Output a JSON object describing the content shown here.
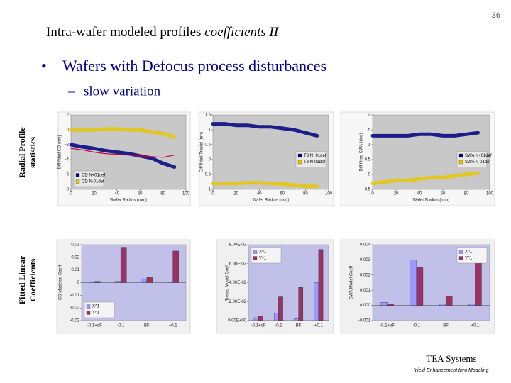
{
  "slide": {
    "page_number": "36",
    "title_plain": "Intra-wafer modeled profiles",
    "title_italic": "coefficients II",
    "bullet": "Wafers with Defocus process disturbances",
    "sub_bullet": "slow variation",
    "row_labels": [
      [
        "Radial Profile",
        "statistics"
      ],
      [
        "Fitted Linear",
        "Coefficients"
      ]
    ],
    "footer_title": "TEA Systems",
    "footer_subtitle": "Yield Enhancement thru Modeling"
  },
  "chart_data": [
    {
      "type": "line",
      "xlabel": "Wafer Radius (mm)",
      "ylabel": "Diff fitted CD (nm)",
      "x": [
        0,
        10,
        20,
        30,
        40,
        50,
        60,
        70,
        80,
        90
      ],
      "xlim": [
        0,
        100
      ],
      "xticks": [
        0,
        20,
        40,
        60,
        80,
        100
      ],
      "ylim": [
        -8,
        2
      ],
      "yticks": [
        -8,
        -6,
        -4,
        -2,
        0,
        2
      ],
      "legend": "lower left",
      "series": [
        {
          "name": "CD N+01def",
          "color": "#000080",
          "values": [
            -2,
            -2.3,
            -2.5,
            -2.8,
            -3,
            -3.2,
            -3.5,
            -3.8,
            -4.5,
            -5
          ]
        },
        {
          "name": "CD N-01def",
          "color": "#e6c800",
          "values": [
            0,
            0,
            0,
            0.1,
            0.1,
            0,
            0,
            -0.3,
            -0.5,
            -1
          ]
        },
        {
          "color": "#cc0033",
          "values": [
            -2.5,
            -2.7,
            -3,
            -3.2,
            -3.3,
            -3.4,
            -3.5,
            -3.6,
            -3.7,
            -3.4
          ]
        }
      ]
    },
    {
      "type": "line",
      "xlabel": "Wafer Radius (mm)",
      "ylabel": "Diff fitted Tresist (nm)",
      "x": [
        0,
        10,
        20,
        30,
        40,
        50,
        60,
        70,
        80,
        90
      ],
      "xlim": [
        0,
        100
      ],
      "xticks": [
        0,
        20,
        40,
        60,
        80,
        100
      ],
      "ylim": [
        -1,
        1.5
      ],
      "yticks": [
        -1,
        -0.5,
        0,
        0.5,
        1,
        1.5
      ],
      "legend": "center right",
      "series": [
        {
          "name": "T3 N+01def",
          "color": "#000080",
          "values": [
            1.2,
            1.2,
            1.15,
            1.15,
            1.1,
            1.1,
            1.05,
            1,
            0.9,
            0.8
          ]
        },
        {
          "name": "T3 N-01def",
          "color": "#e6c800",
          "values": [
            -0.8,
            -0.8,
            -0.8,
            -0.78,
            -0.78,
            -0.8,
            -0.82,
            -0.85,
            -0.9,
            -0.9
          ]
        }
      ]
    },
    {
      "type": "line",
      "xlabel": "Wafer Radius (mm)",
      "ylabel": "Diff fitted SWA (deg)",
      "x": [
        0,
        10,
        20,
        30,
        40,
        50,
        60,
        70,
        80,
        90
      ],
      "xlim": [
        0,
        100
      ],
      "xticks": [
        0,
        20,
        40,
        60,
        80,
        100
      ],
      "ylim": [
        -0.5,
        2
      ],
      "yticks": [
        -0.5,
        0,
        0.5,
        1,
        1.5,
        2
      ],
      "legend": "center right",
      "series": [
        {
          "name": "SWA N+01def",
          "color": "#000080",
          "values": [
            1.3,
            1.3,
            1.3,
            1.3,
            1.35,
            1.35,
            1.3,
            1.3,
            1.35,
            1.4
          ]
        },
        {
          "name": "SWA N-01def",
          "color": "#e6c800",
          "values": [
            -0.3,
            -0.25,
            -0.2,
            -0.2,
            -0.15,
            -0.1,
            -0.1,
            -0.05,
            0,
            0.05
          ]
        }
      ]
    },
    {
      "type": "bar",
      "ylabel": "CD Modeled Coeff",
      "categories": [
        "-0.1+oF",
        "-0.1",
        "BF",
        "+0.1"
      ],
      "ylim": [
        -0.03,
        0.03
      ],
      "yticks": [
        -0.03,
        -0.02,
        -0.01,
        0,
        0.01,
        0.02,
        0.03
      ],
      "legend": "lower left",
      "series": [
        {
          "name": "X^1",
          "color": "#9999ff",
          "values": [
            0.0005,
            0.001,
            0.003,
            0.0005
          ]
        },
        {
          "name": "Y^1",
          "color": "#993366",
          "values": [
            0.001,
            0.028,
            0.004,
            0.025
          ]
        }
      ]
    },
    {
      "type": "bar",
      "ylabel": "Tresist Model Coeff",
      "categories": [
        "-0.1+oF",
        "-0.1",
        "BF",
        "+0.1"
      ],
      "ylim": [
        0,
        0.08
      ],
      "yticks": [
        {
          "value": 0,
          "label": "0.00E+00"
        },
        {
          "value": 0.02,
          "label": "2.00E-02"
        },
        {
          "value": 0.04,
          "label": "4.00E-02"
        },
        {
          "value": 0.06,
          "label": "6.00E-02"
        },
        {
          "value": 0.08,
          "label": "8.00E-02"
        }
      ],
      "legend": "upper left",
      "series": [
        {
          "name": "X^1",
          "color": "#9999ff",
          "values": [
            0.003,
            0.008,
            0.002,
            0.04
          ]
        },
        {
          "name": "Y^1",
          "color": "#993366",
          "values": [
            0.005,
            0.025,
            0.035,
            0.075
          ]
        }
      ]
    },
    {
      "type": "bar",
      "ylabel": "SWA Model Coeff",
      "categories": [
        "-0.1+oF",
        "-0.1",
        "BF",
        "+0.1"
      ],
      "ylim": [
        -0.001,
        0.004
      ],
      "yticks": [
        -0.001,
        {
          "value": 0,
          "label": "0.000"
        },
        0.001,
        0.002,
        0.003,
        0.004
      ],
      "legend": "upper right",
      "series": [
        {
          "name": "X^1",
          "color": "#9999ff",
          "values": [
            0.0002,
            0.003,
            0.0001,
            0.0001
          ]
        },
        {
          "name": "Y^1",
          "color": "#993366",
          "values": [
            0.0001,
            0.0025,
            0.0006,
            0.0035
          ]
        }
      ]
    }
  ]
}
